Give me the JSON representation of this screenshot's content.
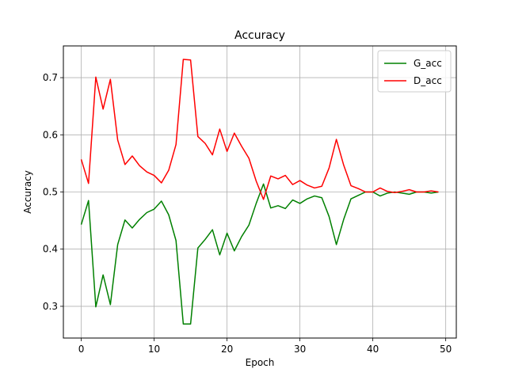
{
  "chart_data": {
    "type": "line",
    "title": "Accuracy",
    "xlabel": "Epoch",
    "ylabel": "Accuracy",
    "xlim": [
      -2.45,
      51.45
    ],
    "ylim": [
      0.2445,
      0.7555
    ],
    "x_ticks": [
      0,
      10,
      20,
      30,
      40,
      50
    ],
    "y_ticks": [
      0.3,
      0.4,
      0.5,
      0.6,
      0.7
    ],
    "x_tick_labels": [
      "0",
      "10",
      "20",
      "30",
      "40",
      "50"
    ],
    "y_tick_labels": [
      "0.3",
      "0.4",
      "0.5",
      "0.6",
      "0.7"
    ],
    "grid": true,
    "legend_position": "top-right",
    "x": [
      0,
      1,
      2,
      3,
      4,
      5,
      6,
      7,
      8,
      9,
      10,
      11,
      12,
      13,
      14,
      15,
      16,
      17,
      18,
      19,
      20,
      21,
      22,
      23,
      24,
      25,
      26,
      27,
      28,
      29,
      30,
      31,
      32,
      33,
      34,
      35,
      36,
      37,
      38,
      39,
      40,
      41,
      42,
      43,
      44,
      45,
      46,
      47,
      48,
      49
    ],
    "series": [
      {
        "name": "G_acc",
        "color": "#008000",
        "values": [
          0.443,
          0.485,
          0.299,
          0.355,
          0.303,
          0.408,
          0.451,
          0.437,
          0.452,
          0.464,
          0.47,
          0.484,
          0.46,
          0.415,
          0.269,
          0.269,
          0.402,
          0.417,
          0.434,
          0.39,
          0.428,
          0.397,
          0.422,
          0.442,
          0.48,
          0.514,
          0.472,
          0.476,
          0.471,
          0.486,
          0.48,
          0.488,
          0.493,
          0.49,
          0.457,
          0.408,
          0.452,
          0.488,
          0.494,
          0.5,
          0.5,
          0.493,
          0.498,
          0.5,
          0.498,
          0.496,
          0.5,
          0.5,
          0.498,
          0.5
        ]
      },
      {
        "name": "D_acc",
        "color": "#ff0000",
        "values": [
          0.557,
          0.515,
          0.701,
          0.645,
          0.697,
          0.591,
          0.548,
          0.563,
          0.546,
          0.535,
          0.529,
          0.516,
          0.538,
          0.583,
          0.732,
          0.731,
          0.597,
          0.585,
          0.565,
          0.61,
          0.571,
          0.603,
          0.58,
          0.559,
          0.519,
          0.487,
          0.528,
          0.523,
          0.529,
          0.513,
          0.52,
          0.512,
          0.507,
          0.51,
          0.542,
          0.592,
          0.547,
          0.511,
          0.506,
          0.5,
          0.5,
          0.507,
          0.501,
          0.499,
          0.501,
          0.504,
          0.5,
          0.5,
          0.502,
          0.5
        ]
      }
    ]
  }
}
